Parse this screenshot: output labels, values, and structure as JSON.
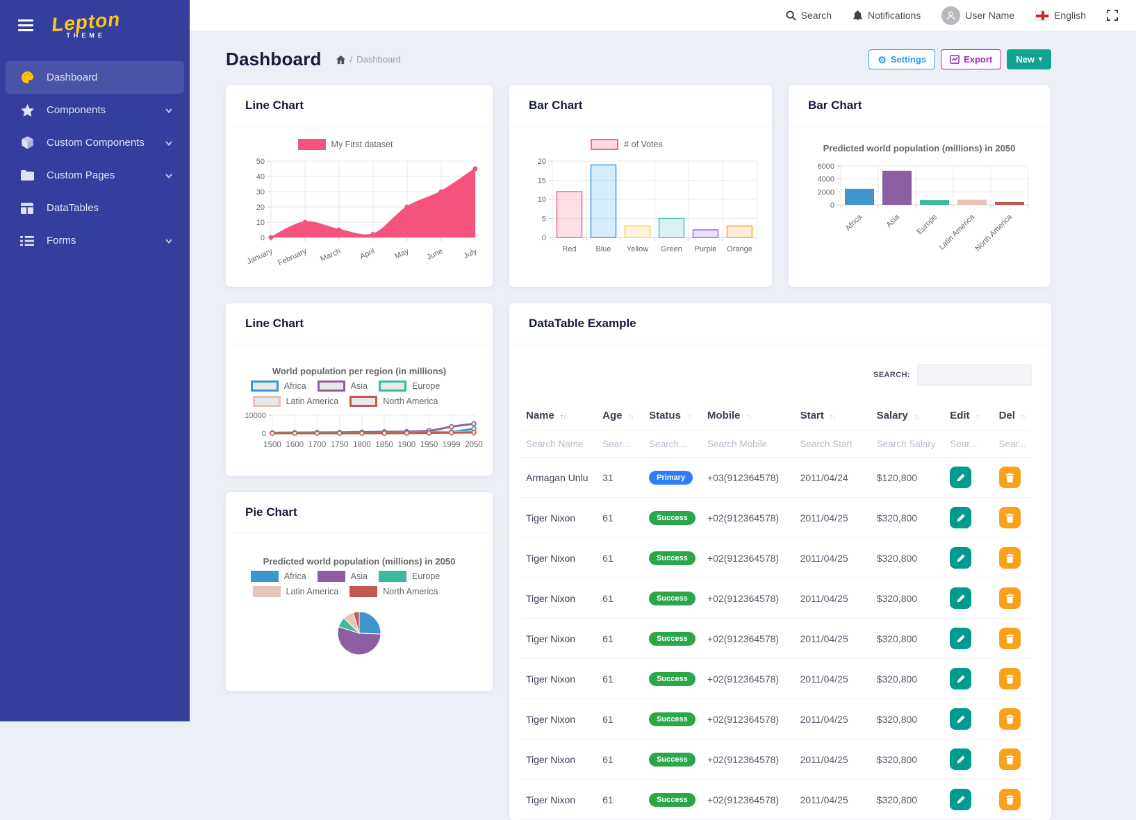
{
  "navbar": {
    "search": "Search",
    "notifications": "Notifications",
    "user_name": "User Name",
    "language": "English"
  },
  "sidebar": {
    "brand": "Lepton",
    "brand_sub": "THEME",
    "items": [
      {
        "label": "Dashboard",
        "icon": "palette-icon",
        "active": true,
        "chevron": false
      },
      {
        "label": "Components",
        "icon": "star-icon",
        "active": false,
        "chevron": true
      },
      {
        "label": "Custom Components",
        "icon": "cube-icon",
        "active": false,
        "chevron": true
      },
      {
        "label": "Custom Pages",
        "icon": "folder-icon",
        "active": false,
        "chevron": true
      },
      {
        "label": "DataTables",
        "icon": "table-icon",
        "active": false,
        "chevron": false
      },
      {
        "label": "Forms",
        "icon": "list-icon",
        "active": false,
        "chevron": true
      }
    ]
  },
  "page": {
    "title": "Dashboard",
    "breadcrumb_separator": "/",
    "breadcrumb_current": "Dashboard",
    "settings_button": "Settings",
    "export_button": "Export",
    "new_button": "New"
  },
  "cards": {
    "line1_title": "Line Chart",
    "votes_title": "Bar Chart",
    "popbar_title": "Bar Chart",
    "line2_title": "Line Chart",
    "pie_title": "Pie Chart",
    "datatable_title": "DataTable Example"
  },
  "chart_data": [
    {
      "id": "line1",
      "type": "area",
      "legend": [
        {
          "label": "My First dataset",
          "fill": "#f4547c"
        }
      ],
      "categories": [
        "January",
        "February",
        "March",
        "April",
        "May",
        "June",
        "July"
      ],
      "values": [
        0,
        10,
        5,
        2,
        20,
        30,
        45
      ],
      "ylim": [
        0,
        50
      ],
      "yticks": [
        0,
        10,
        20,
        30,
        40,
        50
      ],
      "color": "#f4547c"
    },
    {
      "id": "votes",
      "type": "bar",
      "legend": [
        {
          "label": "# of Votes",
          "fill": "rgba(255,99,132,0.25)",
          "border": "rgb(255,99,132)"
        }
      ],
      "categories": [
        "Red",
        "Blue",
        "Yellow",
        "Green",
        "Purple",
        "Orange"
      ],
      "values": [
        12,
        19,
        3,
        5,
        2,
        3
      ],
      "ylim": [
        0,
        20
      ],
      "yticks": [
        0,
        5,
        10,
        15,
        20
      ],
      "bar_fills": [
        "rgba(255,99,132,0.2)",
        "rgba(54,162,235,0.2)",
        "rgba(255,206,86,0.2)",
        "rgba(75,192,192,0.2)",
        "rgba(153,102,255,0.2)",
        "rgba(255,159,64,0.2)"
      ],
      "bar_borders": [
        "rgb(255,99,132)",
        "rgb(54,162,235)",
        "rgb(255,206,86)",
        "rgb(75,192,192)",
        "rgb(153,102,255)",
        "rgb(255,159,64)"
      ]
    },
    {
      "id": "popbar",
      "type": "bar",
      "title": "Predicted world population (millions) in 2050",
      "categories": [
        "Africa",
        "Asia",
        "Europe",
        "Latin America",
        "North America"
      ],
      "values": [
        2478,
        5267,
        734,
        784,
        433
      ],
      "ylim": [
        0,
        6000
      ],
      "yticks": [
        0,
        2000,
        4000,
        6000
      ],
      "bar_fills": [
        "#3e95cd",
        "#8e5ea2",
        "#3cba9f",
        "#e8c3b9",
        "#c45850"
      ],
      "rotate_labels": true
    },
    {
      "id": "popline",
      "type": "line",
      "title": "World population per region (in millions)",
      "x": [
        "1500",
        "1600",
        "1700",
        "1750",
        "1800",
        "1850",
        "1900",
        "1950",
        "1999",
        "2050"
      ],
      "series": [
        {
          "name": "Africa",
          "color": "#3e95cd",
          "values": [
            86,
            114,
            106,
            106,
            107,
            111,
            133,
            221,
            783,
            2478
          ]
        },
        {
          "name": "Asia",
          "color": "#8e5ea2",
          "values": [
            282,
            350,
            411,
            502,
            635,
            809,
            947,
            1402,
            3634,
            5267
          ]
        },
        {
          "name": "Europe",
          "color": "#3cba9f",
          "values": [
            168,
            170,
            178,
            190,
            203,
            276,
            408,
            547,
            729,
            734
          ]
        },
        {
          "name": "Latin America",
          "color": "#e8c3b9",
          "values": [
            40,
            20,
            10,
            16,
            24,
            38,
            74,
            167,
            511,
            784
          ]
        },
        {
          "name": "North America",
          "color": "#c45850",
          "values": [
            6,
            3,
            2,
            2,
            7,
            26,
            82,
            172,
            312,
            433
          ]
        }
      ],
      "ylim": [
        0,
        10000
      ],
      "yticks": [
        0,
        10000
      ]
    },
    {
      "id": "pie",
      "type": "pie",
      "title": "Predicted world population (millions) in 2050",
      "labels": [
        "Africa",
        "Asia",
        "Europe",
        "Latin America",
        "North America"
      ],
      "values": [
        2478,
        5267,
        734,
        784,
        433
      ],
      "colors": [
        "#3e95cd",
        "#8e5ea2",
        "#3cba9f",
        "#e8c3b9",
        "#c45850"
      ]
    }
  ],
  "datatable": {
    "search_label": "SEARCH:",
    "columns": [
      {
        "label": "Name",
        "sorted": true
      },
      {
        "label": "Age",
        "sorted": false
      },
      {
        "label": "Status",
        "sorted": false
      },
      {
        "label": "Mobile",
        "sorted": false
      },
      {
        "label": "Start",
        "sorted": false
      },
      {
        "label": "Salary",
        "sorted": false
      },
      {
        "label": "Edit",
        "sorted": false
      },
      {
        "label": "Del",
        "sorted": false
      }
    ],
    "filters": [
      "Search Name",
      "Sear...",
      "Search...",
      "Search Mobile",
      "Search Start",
      "Search Salary",
      "Sear...",
      "Sear..."
    ],
    "rows": [
      {
        "name": "Armagan Unlu",
        "age": "31",
        "status": "Primary",
        "status_type": "primary",
        "mobile": "+03(912364578)",
        "start": "2011/04/24",
        "salary": "$120,800"
      },
      {
        "name": "Tiger Nixon",
        "age": "61",
        "status": "Success",
        "status_type": "success",
        "mobile": "+02(912364578)",
        "start": "2011/04/25",
        "salary": "$320,800"
      },
      {
        "name": "Tiger Nixon",
        "age": "61",
        "status": "Success",
        "status_type": "success",
        "mobile": "+02(912364578)",
        "start": "2011/04/25",
        "salary": "$320,800"
      },
      {
        "name": "Tiger Nixon",
        "age": "61",
        "status": "Success",
        "status_type": "success",
        "mobile": "+02(912364578)",
        "start": "2011/04/25",
        "salary": "$320,800"
      },
      {
        "name": "Tiger Nixon",
        "age": "61",
        "status": "Success",
        "status_type": "success",
        "mobile": "+02(912364578)",
        "start": "2011/04/25",
        "salary": "$320,800"
      },
      {
        "name": "Tiger Nixon",
        "age": "61",
        "status": "Success",
        "status_type": "success",
        "mobile": "+02(912364578)",
        "start": "2011/04/25",
        "salary": "$320,800"
      },
      {
        "name": "Tiger Nixon",
        "age": "61",
        "status": "Success",
        "status_type": "success",
        "mobile": "+02(912364578)",
        "start": "2011/04/25",
        "salary": "$320,800"
      },
      {
        "name": "Tiger Nixon",
        "age": "61",
        "status": "Success",
        "status_type": "success",
        "mobile": "+02(912364578)",
        "start": "2011/04/25",
        "salary": "$320,800"
      },
      {
        "name": "Tiger Nixon",
        "age": "61",
        "status": "Success",
        "status_type": "success",
        "mobile": "+02(912364578)",
        "start": "2011/04/25",
        "salary": "$320,800"
      }
    ]
  }
}
